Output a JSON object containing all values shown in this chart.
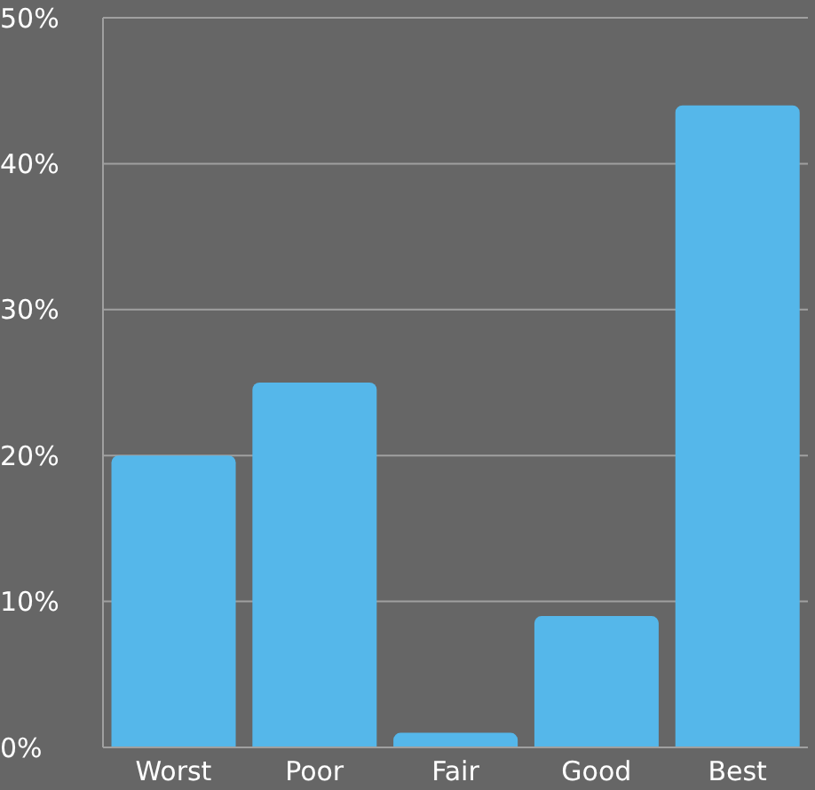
{
  "chart_data": {
    "type": "bar",
    "categories": [
      "Worst",
      "Poor",
      "Fair",
      "Good",
      "Best"
    ],
    "values": [
      20,
      25,
      1,
      9,
      44
    ],
    "color": "#55b7ea",
    "ylim": [
      0,
      50
    ],
    "yticks": [
      {
        "value": 0,
        "label": "0%"
      },
      {
        "value": 10,
        "label": "10%"
      },
      {
        "value": 20,
        "label": "20%"
      },
      {
        "value": 30,
        "label": "30%"
      },
      {
        "value": 40,
        "label": "40%"
      },
      {
        "value": 50,
        "label": "50%"
      }
    ],
    "grid": "y"
  }
}
